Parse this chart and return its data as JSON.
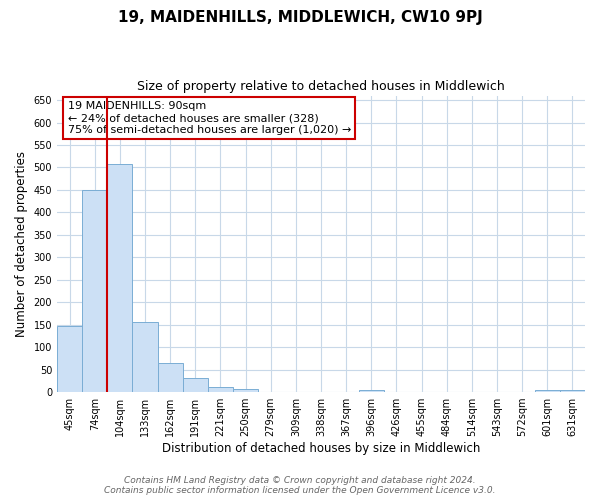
{
  "title": "19, MAIDENHILLS, MIDDLEWICH, CW10 9PJ",
  "subtitle": "Size of property relative to detached houses in Middlewich",
  "xlabel": "Distribution of detached houses by size in Middlewich",
  "ylabel": "Number of detached properties",
  "categories": [
    "45sqm",
    "74sqm",
    "104sqm",
    "133sqm",
    "162sqm",
    "191sqm",
    "221sqm",
    "250sqm",
    "279sqm",
    "309sqm",
    "338sqm",
    "367sqm",
    "396sqm",
    "426sqm",
    "455sqm",
    "484sqm",
    "514sqm",
    "543sqm",
    "572sqm",
    "601sqm",
    "631sqm"
  ],
  "values": [
    148,
    450,
    507,
    157,
    65,
    32,
    11,
    7,
    0,
    0,
    0,
    0,
    5,
    0,
    0,
    0,
    0,
    0,
    0,
    5,
    5
  ],
  "bar_color": "#cce0f5",
  "bar_edge_color": "#7aadd4",
  "vline_x": 1.5,
  "vline_color": "#cc0000",
  "annotation_title": "19 MAIDENHILLS: 90sqm",
  "annotation_line1": "← 24% of detached houses are smaller (328)",
  "annotation_line2": "75% of semi-detached houses are larger (1,020) →",
  "annotation_box_color": "#cc0000",
  "ylim": [
    0,
    660
  ],
  "yticks": [
    0,
    50,
    100,
    150,
    200,
    250,
    300,
    350,
    400,
    450,
    500,
    550,
    600,
    650
  ],
  "footer1": "Contains HM Land Registry data © Crown copyright and database right 2024.",
  "footer2": "Contains public sector information licensed under the Open Government Licence v3.0.",
  "bg_color": "#ffffff",
  "grid_color": "#c8d8e8",
  "title_fontsize": 11,
  "subtitle_fontsize": 9,
  "axis_label_fontsize": 8.5,
  "tick_fontsize": 7,
  "annotation_fontsize": 8,
  "footer_fontsize": 6.5
}
